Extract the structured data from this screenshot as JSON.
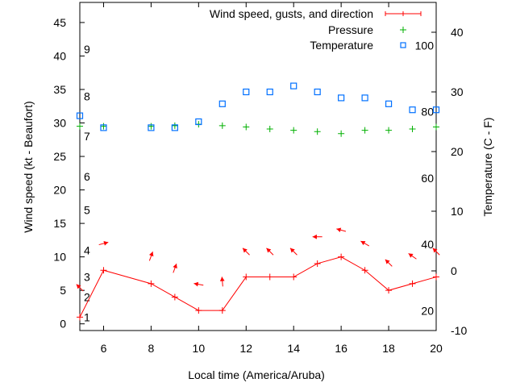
{
  "chart_data": {
    "type": "line",
    "xlabel": "Local time (America/Aruba)",
    "ylabel": "Wind speed (kt - Beaufort)",
    "y2label": "Temperature (C - F)",
    "xlim": [
      5,
      20
    ],
    "ylim": [
      -1,
      48
    ],
    "y2lim": [
      -10,
      45
    ],
    "x_ticks": [
      6,
      8,
      10,
      12,
      14,
      16,
      18,
      20
    ],
    "y_ticks": [
      0,
      5,
      10,
      15,
      20,
      25,
      30,
      35,
      40,
      45
    ],
    "y2_ticks": [
      -10,
      0,
      10,
      20,
      30,
      40
    ],
    "beaufort_labels": [
      {
        "label": "1",
        "kt": 1
      },
      {
        "label": "2",
        "kt": 4
      },
      {
        "label": "3",
        "kt": 7
      },
      {
        "label": "4",
        "kt": 11
      },
      {
        "label": "5",
        "kt": 17
      },
      {
        "label": "6",
        "kt": 22
      },
      {
        "label": "7",
        "kt": 28
      },
      {
        "label": "8",
        "kt": 34
      },
      {
        "label": "9",
        "kt": 41
      }
    ],
    "fahrenheit_labels": [
      {
        "label": "20",
        "c": -6.67
      },
      {
        "label": "40",
        "c": 4.44
      },
      {
        "label": "60",
        "c": 15.56
      },
      {
        "label": "80",
        "c": 26.67
      },
      {
        "label": "100",
        "c": 37.78
      }
    ],
    "x": [
      5,
      6,
      8,
      9,
      10,
      11,
      12,
      13,
      14,
      15,
      16,
      17,
      18,
      19,
      20
    ],
    "series": [
      {
        "name": "Wind speed, gusts, and direction",
        "color": "#ff0000",
        "axis": "y",
        "values": [
          1,
          8,
          6,
          4,
          2,
          2,
          7,
          7,
          7,
          9,
          10,
          8,
          5,
          6,
          7
        ]
      },
      {
        "name": "Pressure",
        "color": "#00b000",
        "axis": "y",
        "values": [
          29.5,
          29.5,
          29.5,
          29.6,
          29.8,
          29.6,
          29.4,
          29.1,
          28.9,
          28.7,
          28.4,
          28.9,
          28.9,
          29.1,
          29.4
        ]
      },
      {
        "name": "Temperature",
        "color": "#0070ff",
        "axis": "y2",
        "values": [
          26,
          24,
          24,
          24,
          25,
          28,
          30,
          30,
          31,
          30,
          29,
          29,
          28,
          27,
          27
        ]
      }
    ],
    "wind_arrows": {
      "color": "#ff0000",
      "y": [
        5.4,
        12,
        10.1,
        8.3,
        5.9,
        6.3,
        10.8,
        10.8,
        10.8,
        13,
        14,
        12,
        9.1,
        10.1,
        10.8
      ],
      "heading_deg": [
        135,
        15,
        70,
        70,
        170,
        95,
        135,
        135,
        135,
        180,
        165,
        150,
        135,
        145,
        135
      ]
    },
    "legend": {
      "placement": "top-right",
      "entries": [
        "Wind speed, gusts, and direction",
        "Pressure",
        "Temperature"
      ]
    }
  }
}
